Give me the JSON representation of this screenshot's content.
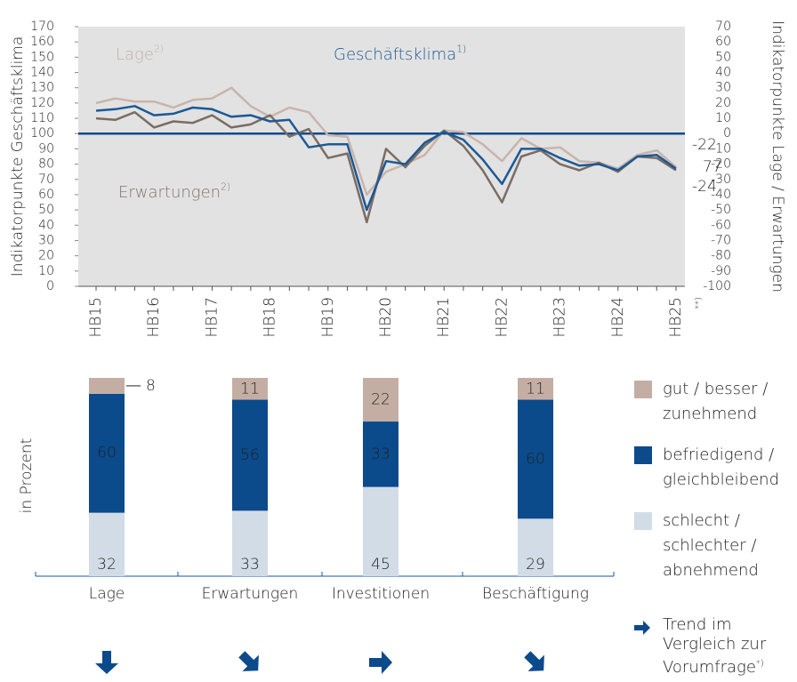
{
  "chart_data": [
    {
      "type": "line",
      "x": [
        "HB15",
        null,
        null,
        "HB16",
        null,
        null,
        "HB17",
        null,
        null,
        "HB18",
        null,
        null,
        "HB19",
        null,
        null,
        "HB20",
        null,
        null,
        "HB21",
        null,
        null,
        "HB22",
        null,
        null,
        "HB23",
        null,
        null,
        "HB24",
        null,
        null,
        "HB25"
      ],
      "x_note": "**)",
      "ylabel": "Indikatorpunkte Geschäftsklima",
      "y2label": "Indikatorpunkte Lage / Erwartungen",
      "ylim": [
        0,
        170
      ],
      "yticks": [
        0,
        10,
        20,
        30,
        40,
        50,
        60,
        70,
        80,
        90,
        100,
        110,
        120,
        130,
        140,
        150,
        160,
        170
      ],
      "y2lim": [
        -100,
        70
      ],
      "y2ticks": [
        -100,
        -90,
        -80,
        -70,
        -60,
        -50,
        -40,
        -30,
        -20,
        -10,
        0,
        10,
        20,
        30,
        40,
        50,
        60,
        70
      ],
      "reference_line": 100,
      "grid": false,
      "series": [
        {
          "name": "Lage",
          "sup": "2)",
          "color": "#c9b4ab",
          "axis": "y2",
          "values": [
            20,
            23,
            21,
            21,
            17,
            22,
            23,
            30,
            18,
            11,
            17,
            14,
            -1,
            -2,
            -40,
            -25,
            -20,
            -14,
            2,
            1,
            -7,
            -18,
            -3,
            -10,
            -9,
            -18,
            -19,
            -23,
            -14,
            -11,
            -22
          ]
        },
        {
          "name": "Geschäftsklima",
          "sup": "1)",
          "color": "#1b5995",
          "values": [
            115,
            116,
            118,
            112,
            113,
            117,
            116,
            111,
            112,
            108,
            109,
            91,
            93,
            93,
            50,
            82,
            80,
            94,
            101,
            96,
            83,
            67,
            90,
            90,
            84,
            79,
            80,
            76,
            85,
            86,
            77
          ]
        },
        {
          "name": "Erwartungen",
          "sup": "2)",
          "color": "#7b6c64",
          "axis": "y2",
          "values": [
            10,
            9,
            14,
            4,
            8,
            7,
            12,
            4,
            6,
            12,
            -2,
            3,
            -16,
            -13,
            -58,
            -10,
            -22,
            -8,
            2,
            -8,
            -24,
            -45,
            -15,
            -11,
            -20,
            -24,
            -19,
            -25,
            -15,
            -16,
            -24
          ]
        }
      ]
    },
    {
      "type": "stacked_bar",
      "ylabel": "in Prozent",
      "categories": [
        "Lage",
        "Erwartungen",
        "Investitionen",
        "Beschäftigung"
      ],
      "series": [
        {
          "name": "gut / besser / zunehmend",
          "color": "#c4aea4",
          "values": [
            8,
            11,
            22,
            11
          ]
        },
        {
          "name": "befriedigend / gleichbleibend",
          "color": "#0b4a8b",
          "values": [
            60,
            56,
            33,
            60
          ]
        },
        {
          "name": "schlecht / schlechter / abnehmend",
          "color": "#d1dce7",
          "values": [
            32,
            33,
            45,
            29
          ]
        }
      ],
      "trends": [
        "down",
        "down-right",
        "right",
        "down-right"
      ],
      "trend_color": "#0b4a8b",
      "trend_legend": {
        "text": "Trend im Vergleich zur Vorumfrage",
        "sup": "*)"
      }
    }
  ]
}
